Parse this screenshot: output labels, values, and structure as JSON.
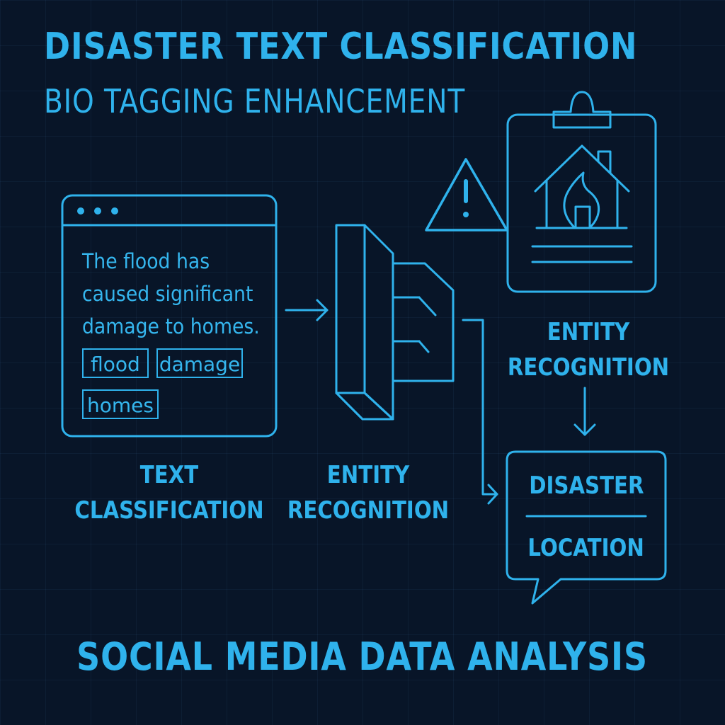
{
  "header": {
    "title": "DISASTER TEXT CLASSIFICATION",
    "subtitle": "BIO TAGGING ENHANCEMENT"
  },
  "text_panel": {
    "lines": [
      "The flood has",
      "caused significant",
      "damage to homes."
    ],
    "tags": [
      "flood",
      "damage",
      "homes"
    ]
  },
  "stages": {
    "text_classification": [
      "TEXT",
      "CLASSIFICATION"
    ],
    "entity_recognition_middle": [
      "ENTITY",
      "RECOGNITION"
    ],
    "entity_recognition_right": [
      "ENTITY",
      "RECOGNITION"
    ]
  },
  "entities": {
    "disaster": "DISASTER",
    "location": "LOCATION"
  },
  "footer": {
    "title": "SOCIAL MEDIA DATA ANALYSIS"
  },
  "icons": {
    "window": "browser-window-icon",
    "model": "model-block-icon",
    "warning": "warning-triangle-icon",
    "clipboard": "clipboard-house-fire-icon",
    "bubble": "speech-bubble-icon"
  },
  "colors": {
    "background": "#081528",
    "accent": "#2fb2ec"
  }
}
